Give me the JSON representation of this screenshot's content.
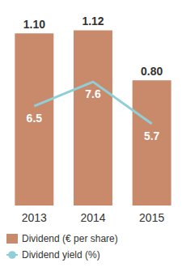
{
  "chart_data": {
    "type": "bar",
    "categories": [
      "2013",
      "2014",
      "2015"
    ],
    "series": [
      {
        "name": "Dividend (€ per share)",
        "type": "bar",
        "color": "#c98a6b",
        "values": [
          1.1,
          1.12,
          0.8
        ],
        "value_labels": [
          "1.10",
          "1.12",
          "0.80"
        ]
      },
      {
        "name": "Dividend yield (%)",
        "type": "line",
        "color": "#8fcfd8",
        "axis": "y2",
        "values": [
          6.5,
          7.6,
          5.7
        ]
      }
    ],
    "ylim": [
      0,
      1.2
    ],
    "y2lim": [
      2,
      10.5
    ],
    "data_labels": true,
    "tick_labels": "x",
    "legend": "bottom-left",
    "grid": false
  }
}
